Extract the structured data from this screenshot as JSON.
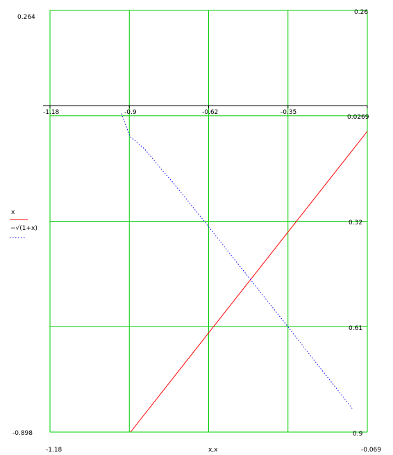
{
  "chart_data": {
    "type": "line",
    "xlabel": "x,x",
    "x_axis_labels": [
      "-1.18",
      "-0.069"
    ],
    "x_tick_labels": [
      "-1.18",
      "-0.9",
      "-0.62",
      "-0.35"
    ],
    "xlim": [
      -1.18,
      -0.069
    ],
    "ylim": [
      -0.898,
      0.264
    ],
    "left_axis_labels": [
      "0.264",
      "-0.898"
    ],
    "right_axis_labels": [
      "0.26",
      "0.0269",
      "0.32",
      "0.61",
      "0.9"
    ],
    "grid": true,
    "grid_color": "#00cc00",
    "legend_position": "left",
    "series": [
      {
        "legend_label": "x",
        "color": "#ff0000",
        "style": "solid",
        "x": [
          -0.898,
          -0.069
        ],
        "y": [
          -0.898,
          -0.069
        ]
      },
      {
        "legend_label": "−√(1+x)",
        "color": "#0000ff",
        "style": "dotted",
        "x": [
          -0.93,
          -0.9,
          -0.85,
          -0.8,
          -0.75,
          -0.7,
          -0.65,
          -0.6,
          -0.55,
          -0.5,
          -0.45,
          -0.4,
          -0.35,
          -0.3,
          -0.25,
          -0.2,
          -0.15,
          -0.12
        ],
        "y": [
          -0.02,
          -0.083,
          -0.117,
          -0.164,
          -0.21,
          -0.258,
          -0.307,
          -0.357,
          -0.406,
          -0.456,
          -0.506,
          -0.555,
          -0.605,
          -0.655,
          -0.705,
          -0.755,
          -0.805,
          -0.835
        ]
      }
    ]
  }
}
